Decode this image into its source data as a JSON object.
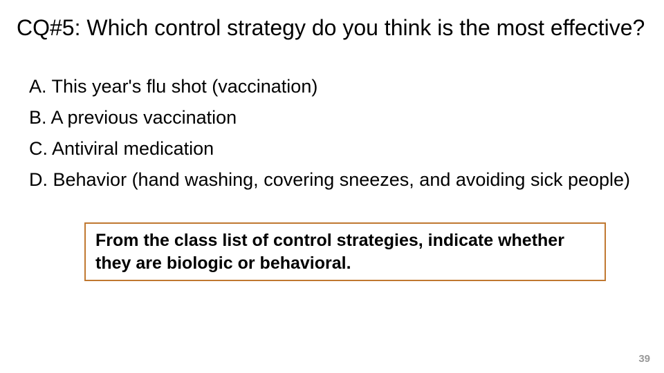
{
  "title": "CQ#5: Which control strategy do you think is the most effective?",
  "options": {
    "a": "A. This year's flu shot (vaccination)",
    "b": "B. A previous vaccination",
    "c": "C. Antiviral medication",
    "d": "D. Behavior (hand washing, covering sneezes, and avoiding sick people)"
  },
  "callout": "From the class list of control strategies, indicate whether they are biologic or behavioral.",
  "page_number": "39",
  "colors": {
    "background": "#ffffff",
    "text": "#000000",
    "callout_border": "#c07830",
    "page_number": "#999999"
  },
  "typography": {
    "title_fontsize": 32,
    "option_fontsize": 27,
    "callout_fontsize": 25,
    "pagenum_fontsize": 15,
    "font_family": "Arial"
  }
}
